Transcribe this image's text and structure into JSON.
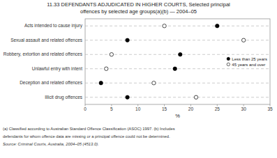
{
  "chart_data": {
    "type": "dot",
    "title": "11.33   DEFENDANTS ADJUDICATED IN HIGHER COURTS, Selected principal",
    "subtitle": "offences by selected age groups(a)(b) — 2004–05",
    "orientation": "horizontal",
    "categories": [
      "Acts intended to cause injury",
      "Sexual assault and related offences",
      "Robbery, extortion and related offences",
      "Unlawful entry with intent",
      "Deception and related offences",
      "Illicit drug offences"
    ],
    "series": [
      {
        "name": "Less than 25 years",
        "color": "#000000",
        "marker": "circle",
        "values": [
          25,
          8,
          18,
          17,
          3,
          8
        ]
      },
      {
        "name": "45 years and over",
        "color": "#ffffff",
        "marker": "circle",
        "values": [
          15,
          30,
          5,
          4,
          13,
          21
        ]
      }
    ],
    "x_label": "%",
    "xlim": [
      0,
      35
    ],
    "xticks": [
      0,
      5,
      10,
      15,
      20,
      25,
      30,
      35
    ],
    "grid": true,
    "legend": "right",
    "annotations": [
      "(a) Classified according to Australian Standard Offence Classification (ASOC) 1997. (b) Includes",
      "defendants for whom offence data are missing or a principal offence could not be determined.",
      "Source: Criminal Courts, Australia, 2004–05 (4513.0)."
    ]
  }
}
